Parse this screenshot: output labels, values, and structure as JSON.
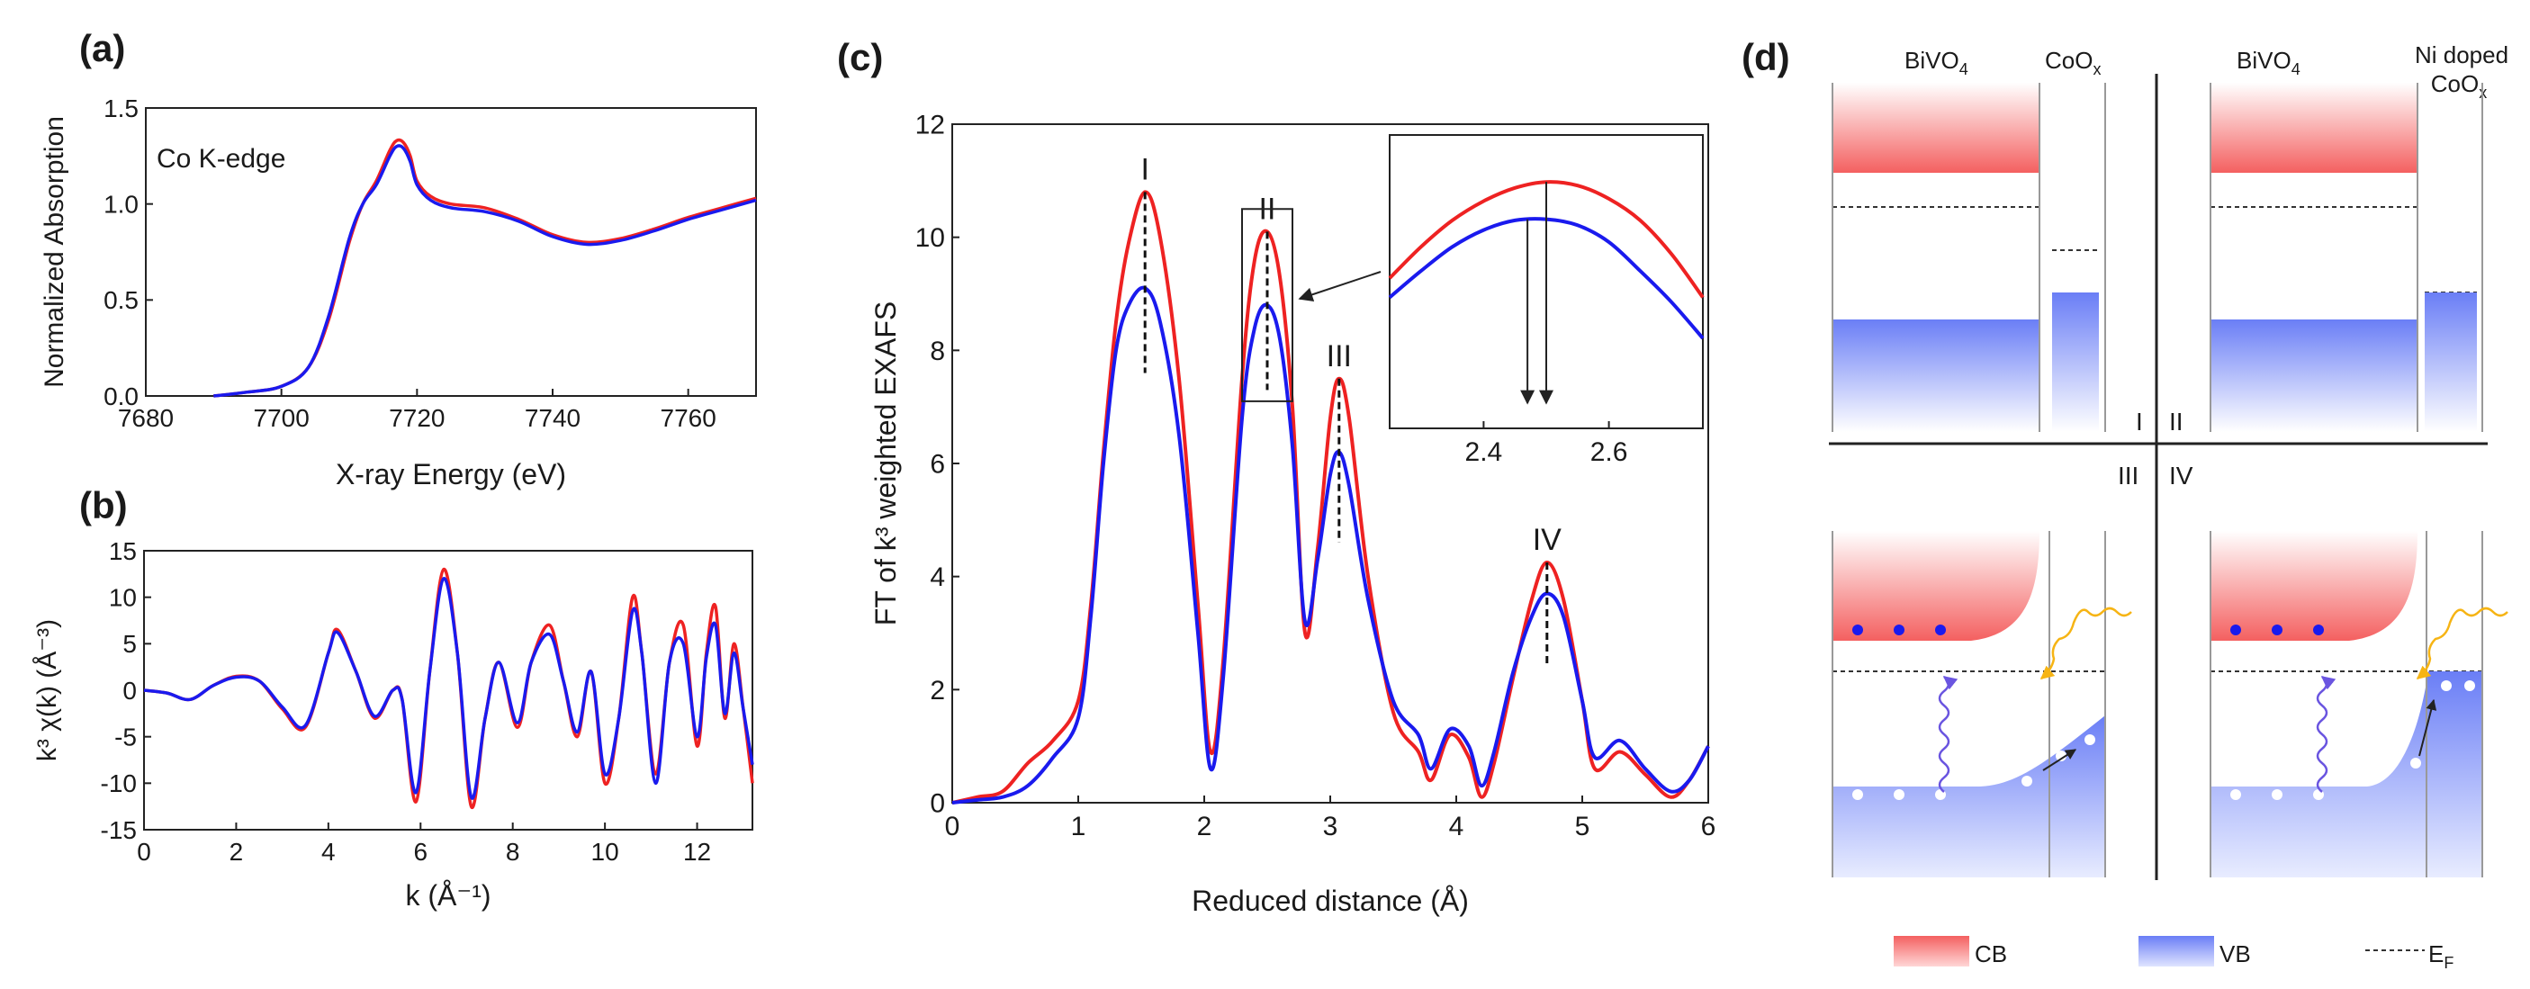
{
  "colors": {
    "red": "#ee2222",
    "blue": "#1a1aee",
    "cb": "#f46060",
    "vb": "#6a7ef6",
    "arrow_orange": "#f6b414",
    "arrow_purple": "#6a55e0"
  },
  "panel_labels": {
    "a": "(a)",
    "b": "(b)",
    "c": "(c)",
    "d": "(d)"
  },
  "chart_data": [
    {
      "id": "a",
      "type": "line",
      "title": "Co K-edge",
      "xlabel": "X-ray Energy (eV)",
      "ylabel": "Normalized Absorption",
      "xlim": [
        7680,
        7770
      ],
      "ylim": [
        0,
        1.5
      ],
      "xticks": [
        7680,
        7700,
        7720,
        7740,
        7760
      ],
      "yticks": [
        0.0,
        0.5,
        1.0,
        1.5
      ],
      "xtick_labels": [
        "7680",
        "7700",
        "7720",
        "7740",
        "7760"
      ],
      "ytick_labels": [
        "0.0",
        "0.5",
        "1.0",
        "1.5"
      ],
      "series": [
        {
          "name": "red",
          "x": [
            7690,
            7695,
            7700,
            7704,
            7707,
            7710,
            7712,
            7714,
            7716,
            7717,
            7718,
            7719,
            7720,
            7722,
            7725,
            7730,
            7735,
            7740,
            7745,
            7750,
            7755,
            7760,
            7765,
            7770
          ],
          "y": [
            0.0,
            0.02,
            0.05,
            0.15,
            0.4,
            0.8,
            1.0,
            1.12,
            1.28,
            1.33,
            1.32,
            1.25,
            1.12,
            1.04,
            1.0,
            0.98,
            0.92,
            0.84,
            0.8,
            0.82,
            0.87,
            0.93,
            0.98,
            1.03
          ]
        },
        {
          "name": "blue",
          "x": [
            7690,
            7695,
            7700,
            7704,
            7707,
            7710,
            7712,
            7714,
            7716,
            7717,
            7718,
            7719,
            7720,
            7722,
            7725,
            7730,
            7735,
            7740,
            7745,
            7750,
            7755,
            7760,
            7765,
            7770
          ],
          "y": [
            0.0,
            0.02,
            0.05,
            0.15,
            0.42,
            0.82,
            1.0,
            1.1,
            1.25,
            1.3,
            1.29,
            1.22,
            1.1,
            1.02,
            0.98,
            0.96,
            0.91,
            0.83,
            0.79,
            0.81,
            0.86,
            0.92,
            0.97,
            1.02
          ]
        }
      ]
    },
    {
      "id": "b",
      "type": "line",
      "xlabel": "k (Å⁻¹)",
      "ylabel": "k³ χ(k) (Å⁻³)",
      "xlim": [
        0,
        13.2
      ],
      "ylim": [
        -15,
        15
      ],
      "xticks": [
        0,
        2,
        4,
        6,
        8,
        10,
        12
      ],
      "yticks": [
        -15,
        -10,
        -5,
        0,
        5,
        10,
        15
      ],
      "xtick_labels": [
        "0",
        "2",
        "4",
        "6",
        "8",
        "10",
        "12"
      ],
      "ytick_labels": [
        "-15",
        "-10",
        "-5",
        "0",
        "5",
        "10",
        "15"
      ],
      "series": [
        {
          "name": "red",
          "x": [
            0,
            0.5,
            1.0,
            1.5,
            2.0,
            2.5,
            3.0,
            3.5,
            4.0,
            4.2,
            4.6,
            5.0,
            5.4,
            5.6,
            5.9,
            6.2,
            6.5,
            6.8,
            7.1,
            7.4,
            7.7,
            8.1,
            8.4,
            8.8,
            9.1,
            9.4,
            9.7,
            10.0,
            10.3,
            10.6,
            10.8,
            11.1,
            11.4,
            11.7,
            12.0,
            12.2,
            12.4,
            12.6,
            12.8,
            13.0,
            13.2
          ],
          "y": [
            0,
            -0.3,
            -1,
            0.5,
            1.5,
            1,
            -2,
            -4,
            4,
            6.5,
            2,
            -3,
            0,
            -1,
            -12,
            2,
            13,
            4,
            -12.5,
            -3,
            3,
            -4,
            3,
            7,
            1,
            -5,
            2,
            -10,
            -3,
            10,
            4,
            -9,
            3,
            7,
            -6,
            4,
            9,
            -3,
            5,
            -2,
            -10
          ]
        },
        {
          "name": "blue",
          "x": [
            0,
            0.5,
            1.0,
            1.5,
            2.0,
            2.5,
            3.0,
            3.5,
            4.0,
            4.2,
            4.6,
            5.0,
            5.4,
            5.6,
            5.9,
            6.2,
            6.5,
            6.8,
            7.1,
            7.4,
            7.7,
            8.1,
            8.4,
            8.8,
            9.1,
            9.4,
            9.7,
            10.0,
            10.3,
            10.6,
            10.8,
            11.1,
            11.4,
            11.7,
            12.0,
            12.2,
            12.4,
            12.6,
            12.8,
            13.0,
            13.2
          ],
          "y": [
            0,
            -0.3,
            -1,
            0.5,
            1.4,
            1,
            -1.8,
            -3.8,
            4,
            6.2,
            2,
            -2.8,
            0,
            -1,
            -11,
            2,
            12,
            4,
            -11.5,
            -3,
            3,
            -3.5,
            3,
            6,
            1,
            -4.5,
            2,
            -9,
            -3,
            8.5,
            4,
            -10,
            3,
            5,
            -5,
            3.5,
            7,
            -2.5,
            4,
            -2,
            -8
          ]
        }
      ]
    },
    {
      "id": "c",
      "type": "line",
      "xlabel": "Reduced distance (Å)",
      "ylabel": "FT of k³ weighted EXAFS",
      "xlim": [
        0,
        6
      ],
      "ylim": [
        0,
        12
      ],
      "xticks": [
        0,
        1,
        2,
        3,
        4,
        5,
        6
      ],
      "yticks": [
        0,
        2,
        4,
        6,
        8,
        10,
        12
      ],
      "xtick_labels": [
        "0",
        "1",
        "2",
        "3",
        "4",
        "5",
        "6"
      ],
      "ytick_labels": [
        "0",
        "2",
        "4",
        "6",
        "8",
        "10",
        "12"
      ],
      "peak_labels": [
        {
          "label": "I",
          "x": 1.53,
          "y": 10.8,
          "ylow": 7.6
        },
        {
          "label": "II",
          "x": 2.5,
          "y": 10.1,
          "ylow": 7.3
        },
        {
          "label": "III",
          "x": 3.07,
          "y": 7.5,
          "ylow": 4.6
        },
        {
          "label": "IV",
          "x": 4.72,
          "y": 4.25,
          "ylow": 2.4
        }
      ],
      "zoom_box": {
        "x": [
          2.3,
          2.7
        ],
        "y": [
          7.1,
          10.5
        ]
      },
      "series": [
        {
          "name": "red",
          "x": [
            0,
            0.2,
            0.4,
            0.6,
            0.8,
            1.0,
            1.1,
            1.2,
            1.3,
            1.4,
            1.53,
            1.65,
            1.8,
            1.95,
            2.05,
            2.15,
            2.3,
            2.4,
            2.5,
            2.6,
            2.7,
            2.8,
            2.9,
            3.0,
            3.07,
            3.15,
            3.3,
            3.5,
            3.7,
            3.8,
            3.95,
            4.1,
            4.2,
            4.3,
            4.45,
            4.6,
            4.72,
            4.85,
            5.0,
            5.1,
            5.3,
            5.5,
            5.7,
            5.85,
            6.0
          ],
          "y": [
            0,
            0.1,
            0.2,
            0.7,
            1.1,
            1.8,
            3.5,
            6.2,
            8.5,
            9.9,
            10.8,
            10.0,
            7.5,
            3.5,
            0.9,
            2.5,
            7.5,
            9.6,
            10.1,
            9.3,
            7.0,
            3.0,
            4.5,
            6.8,
            7.5,
            6.8,
            4.0,
            1.6,
            0.9,
            0.4,
            1.2,
            0.8,
            0.1,
            0.7,
            2.2,
            3.6,
            4.25,
            3.6,
            1.8,
            0.6,
            0.9,
            0.5,
            0.1,
            0.4,
            1.0
          ]
        },
        {
          "name": "blue",
          "x": [
            0,
            0.2,
            0.4,
            0.6,
            0.8,
            1.0,
            1.1,
            1.2,
            1.3,
            1.4,
            1.53,
            1.65,
            1.8,
            1.95,
            2.05,
            2.15,
            2.3,
            2.4,
            2.5,
            2.6,
            2.7,
            2.8,
            2.9,
            3.0,
            3.07,
            3.15,
            3.3,
            3.5,
            3.7,
            3.8,
            3.95,
            4.1,
            4.2,
            4.3,
            4.45,
            4.6,
            4.72,
            4.85,
            5.0,
            5.1,
            5.3,
            5.5,
            5.7,
            5.85,
            6.0
          ],
          "y": [
            0,
            0.05,
            0.1,
            0.3,
            0.8,
            1.5,
            3.3,
            6.0,
            8.0,
            8.8,
            9.1,
            8.5,
            6.5,
            3.0,
            0.6,
            2.2,
            6.8,
            8.4,
            8.8,
            8.2,
            6.3,
            3.2,
            4.3,
            5.8,
            6.2,
            5.6,
            3.6,
            1.8,
            1.2,
            0.6,
            1.3,
            1.0,
            0.3,
            0.9,
            2.3,
            3.3,
            3.7,
            3.3,
            1.8,
            0.8,
            1.1,
            0.6,
            0.2,
            0.4,
            1.0
          ]
        }
      ]
    },
    {
      "id": "c-inset",
      "type": "line",
      "xlim": [
        2.25,
        2.75
      ],
      "xticks": [
        2.4,
        2.6
      ],
      "xtick_labels": [
        "2.4",
        "2.6"
      ],
      "peak_positions": {
        "red": 2.5,
        "blue": 2.47
      },
      "series": [
        {
          "name": "red",
          "x": [
            2.25,
            2.3,
            2.35,
            2.4,
            2.45,
            2.5,
            2.55,
            2.6,
            2.65,
            2.7,
            2.75
          ],
          "y": [
            0.6,
            0.73,
            0.84,
            0.92,
            0.975,
            1.0,
            0.985,
            0.93,
            0.84,
            0.7,
            0.52
          ]
        },
        {
          "name": "blue",
          "x": [
            2.25,
            2.3,
            2.35,
            2.4,
            2.45,
            2.5,
            2.55,
            2.6,
            2.65,
            2.7,
            2.75
          ],
          "y": [
            0.52,
            0.63,
            0.73,
            0.8,
            0.84,
            0.845,
            0.82,
            0.75,
            0.63,
            0.5,
            0.35
          ]
        }
      ]
    }
  ],
  "diagram": {
    "labels": {
      "bivo4": "BiVO",
      "bivo4_sub": "4",
      "coox": "CoO",
      "coox_sub": "x",
      "ni_doped_line1": "Ni doped",
      "ni_doped_line2": "CoO",
      "ni_doped_sub": "x",
      "q1": "I",
      "q2": "II",
      "q3": "III",
      "q4": "IV"
    },
    "legend": {
      "cb": "CB",
      "vb": "VB",
      "ef": "E",
      "ef_sub": "F"
    }
  }
}
